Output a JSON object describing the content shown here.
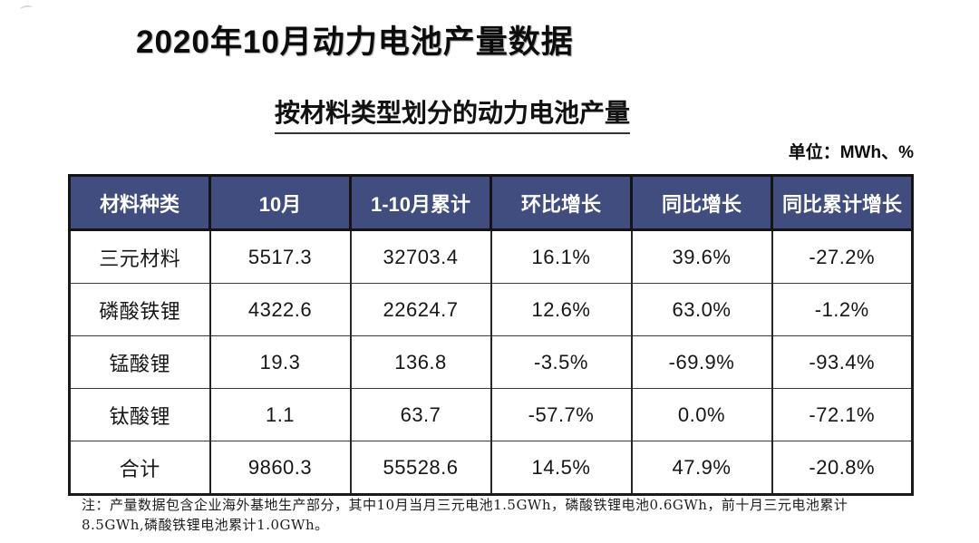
{
  "page": {
    "title": "2020年10月动力电池产量数据",
    "subtitle": "按材料类型划分的动力电池产量",
    "unit_label": "单位：MWh、%",
    "note_line1": "注：产量数据包含企业海外基地生产部分，其中10月当月三元电池1.5GWh，磷酸铁锂电池0.6GWh，前十月三元电池累计",
    "note_line2": "8.5GWh,磷酸铁锂电池累计1.0GWh。"
  },
  "colors": {
    "header_bg": "#404d7e",
    "header_text": "#ffffff",
    "border": "#1a1a1a",
    "body_text": "#161616"
  },
  "chart_data": {
    "type": "table",
    "title": "按材料类型划分的动力电池产量",
    "unit": "MWh、%",
    "columns": [
      "材料种类",
      "10月",
      "1-10月累计",
      "环比增长",
      "同比增长",
      "同比累计增长"
    ],
    "rows": [
      [
        "三元材料",
        "5517.3",
        "32703.4",
        "16.1%",
        "39.6%",
        "-27.2%"
      ],
      [
        "磷酸铁锂",
        "4322.6",
        "22624.7",
        "12.6%",
        "63.0%",
        "-1.2%"
      ],
      [
        "锰酸锂",
        "19.3",
        "136.8",
        "-3.5%",
        "-69.9%",
        "-93.4%"
      ],
      [
        "钛酸锂",
        "1.1",
        "63.7",
        "-57.7%",
        "0.0%",
        "-72.1%"
      ],
      [
        "合计",
        "9860.3",
        "55528.6",
        "14.5%",
        "47.9%",
        "-20.8%"
      ]
    ]
  }
}
